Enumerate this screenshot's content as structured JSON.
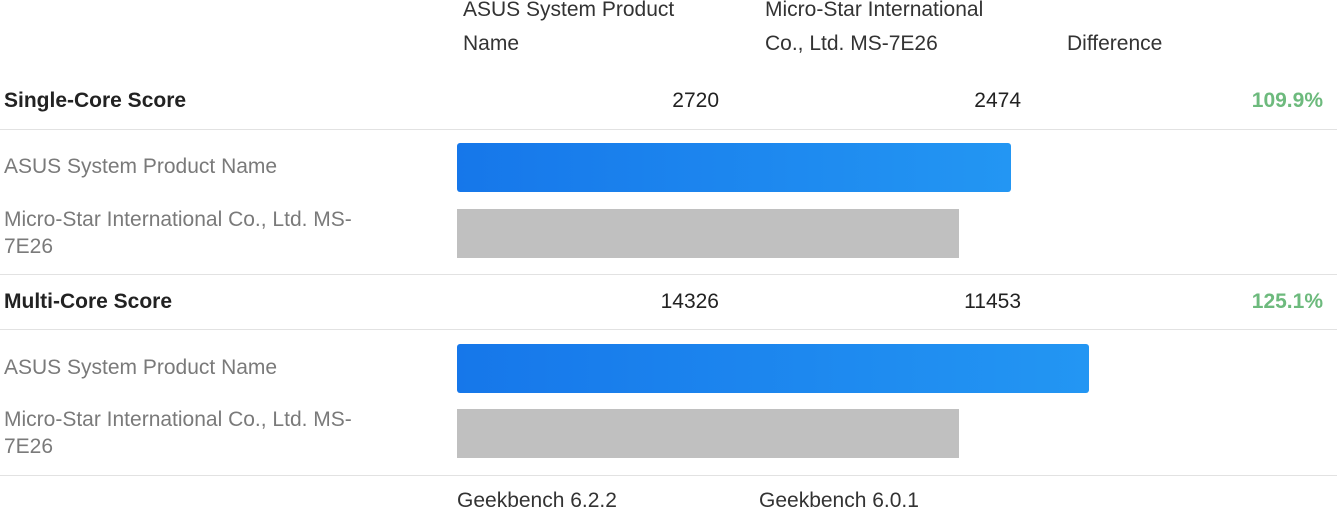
{
  "colors": {
    "primary_bar": "#1f86ee",
    "secondary_bar": "#c0c0c0",
    "positive_diff": "#6dba7d"
  },
  "header": {
    "col1_name": [
      "ASUS System Product",
      "Name"
    ],
    "col2_name": [
      "Micro-Star International",
      "Co., Ltd. MS-7E26"
    ],
    "difference_label": "Difference"
  },
  "device_labels": {
    "primary": "ASUS System Product Name",
    "secondary": [
      "Micro-Star International Co., Ltd. MS-",
      "7E26"
    ]
  },
  "scores": [
    {
      "label": "Single-Core Score",
      "value_primary": "2720",
      "value_secondary": "2474",
      "difference": "109.9%",
      "bar_primary": 2720,
      "bar_secondary": 2474
    },
    {
      "label": "Multi-Core Score",
      "value_primary": "14326",
      "value_secondary": "11453",
      "difference": "125.1%",
      "bar_primary": 14326,
      "bar_secondary": 11453
    }
  ],
  "footer": {
    "col1_version": "Geekbench 6.2.2",
    "col2_version": "Geekbench 6.0.1"
  }
}
